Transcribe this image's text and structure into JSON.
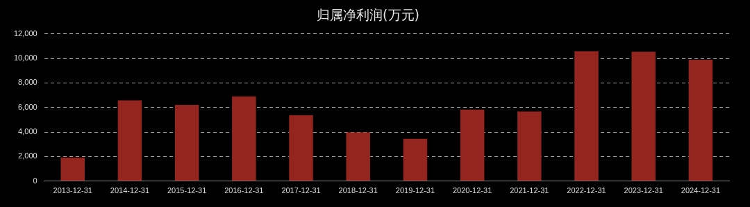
{
  "chart_data": {
    "type": "bar",
    "title": "归属净利润(万元)",
    "categories": [
      "2013-12-31",
      "2014-12-31",
      "2015-12-31",
      "2016-12-31",
      "2017-12-31",
      "2018-12-31",
      "2019-12-31",
      "2020-12-31",
      "2021-12-31",
      "2022-12-31",
      "2023-12-31",
      "2024-12-31"
    ],
    "values": [
      1930,
      6590,
      6210,
      6910,
      5380,
      3980,
      3450,
      5830,
      5680,
      10590,
      10550,
      9890
    ],
    "color": "#93241e",
    "ylim": [
      0,
      12000
    ],
    "yticks": [
      {
        "value": 0,
        "label": "0"
      },
      {
        "value": 2000,
        "label": "2,000"
      },
      {
        "value": 4000,
        "label": "4,000"
      },
      {
        "value": 6000,
        "label": "6,000"
      },
      {
        "value": 8000,
        "label": "8,000"
      },
      {
        "value": 10000,
        "label": "10,000"
      },
      {
        "value": 12000,
        "label": "12,000"
      }
    ],
    "grid": "y",
    "legend": false
  }
}
